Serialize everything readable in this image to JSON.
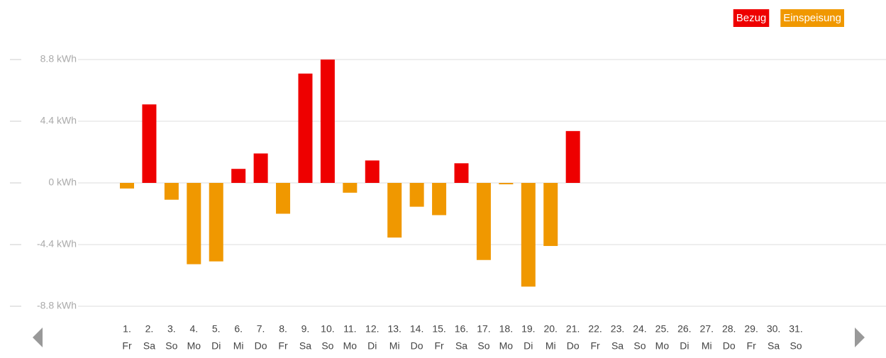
{
  "chart_data": {
    "type": "bar",
    "categories": [
      [
        "1.",
        "Fr"
      ],
      [
        "2.",
        "Sa"
      ],
      [
        "3.",
        "So"
      ],
      [
        "4.",
        "Mo"
      ],
      [
        "5.",
        "Di"
      ],
      [
        "6.",
        "Mi"
      ],
      [
        "7.",
        "Do"
      ],
      [
        "8.",
        "Fr"
      ],
      [
        "9.",
        "Sa"
      ],
      [
        "10.",
        "So"
      ],
      [
        "11.",
        "Mo"
      ],
      [
        "12.",
        "Di"
      ],
      [
        "13.",
        "Mi"
      ],
      [
        "14.",
        "Do"
      ],
      [
        "15.",
        "Fr"
      ],
      [
        "16.",
        "Sa"
      ],
      [
        "17.",
        "So"
      ],
      [
        "18.",
        "Mo"
      ],
      [
        "19.",
        "Di"
      ],
      [
        "20.",
        "Mi"
      ],
      [
        "21.",
        "Do"
      ],
      [
        "22.",
        "Fr"
      ],
      [
        "23.",
        "Sa"
      ],
      [
        "24.",
        "So"
      ],
      [
        "25.",
        "Mo"
      ],
      [
        "26.",
        "Di"
      ],
      [
        "27.",
        "Mi"
      ],
      [
        "28.",
        "Do"
      ],
      [
        "29.",
        "Fr"
      ],
      [
        "30.",
        "Sa"
      ],
      [
        "31.",
        "So"
      ]
    ],
    "series": [
      {
        "name": "Bezug",
        "color": "#ee0000",
        "values": [
          null,
          5.6,
          null,
          null,
          null,
          1.0,
          2.1,
          null,
          7.8,
          8.8,
          null,
          1.6,
          null,
          null,
          null,
          1.4,
          null,
          null,
          null,
          null,
          3.7,
          null,
          null,
          null,
          null,
          null,
          null,
          null,
          null,
          null,
          null
        ]
      },
      {
        "name": "Einspeisung",
        "color": "#f09800",
        "values": [
          -0.4,
          null,
          -1.2,
          -5.8,
          -5.6,
          null,
          null,
          -2.2,
          null,
          null,
          -0.7,
          null,
          -3.9,
          -1.7,
          -2.3,
          null,
          -5.5,
          -0.1,
          -7.4,
          -4.5,
          null,
          null,
          null,
          null,
          null,
          null,
          null,
          null,
          null,
          null,
          null
        ]
      }
    ],
    "ylim": [
      -8.8,
      8.8
    ],
    "yticks": [
      {
        "value": 8.8,
        "label": "8.8 kWh"
      },
      {
        "value": 4.4,
        "label": "4.4 kWh"
      },
      {
        "value": 0,
        "label": "0 kWh"
      },
      {
        "value": -4.4,
        "label": "-4.4 kWh"
      },
      {
        "value": -8.8,
        "label": "-8.8 kWh"
      }
    ],
    "grid": true,
    "legend": "top-right"
  }
}
